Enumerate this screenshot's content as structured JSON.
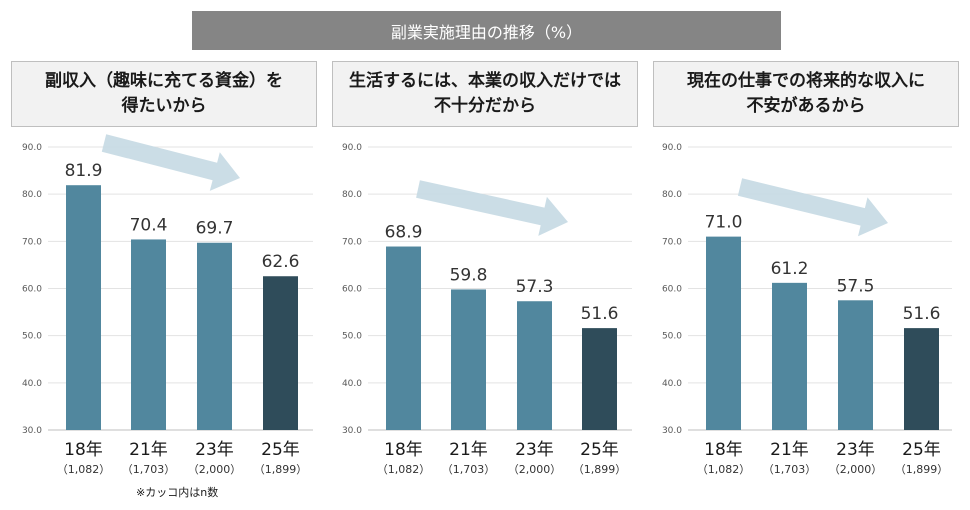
{
  "title": "副業実施理由の推移（%）",
  "footnote": "※カッコ内はn数",
  "colors": {
    "bar": "#51879e",
    "bar_last": "#2f4c5a",
    "arrow": "#c5d9e3",
    "title_bg": "#858585"
  },
  "chart_data": [
    {
      "type": "bar",
      "title_lines": [
        "副収入（趣味に充てる資金）を",
        "得たいから"
      ],
      "categories": [
        "18年",
        "21年",
        "23年",
        "25年"
      ],
      "n_labels": [
        "（1,082）",
        "（1,703）",
        "（2,000）",
        "（1,899）"
      ],
      "values": [
        81.9,
        70.4,
        69.7,
        62.6
      ],
      "value_labels": [
        "81.9",
        "70.4",
        "69.7",
        "62.6"
      ],
      "yticks": [
        "90.0",
        "80.0",
        "70.0",
        "60.0",
        "50.0",
        "40.0",
        "30.0"
      ],
      "ylim": [
        30,
        90
      ]
    },
    {
      "type": "bar",
      "title_lines": [
        "生活するには、本業の収入だけでは",
        "不十分だから"
      ],
      "categories": [
        "18年",
        "21年",
        "23年",
        "25年"
      ],
      "n_labels": [
        "（1,082）",
        "（1,703）",
        "（2,000）",
        "（1,899）"
      ],
      "values": [
        68.9,
        59.8,
        57.3,
        51.6
      ],
      "value_labels": [
        "68.9",
        "59.8",
        "57.3",
        "51.6"
      ],
      "yticks": [
        "90.0",
        "80.0",
        "70.0",
        "60.0",
        "50.0",
        "40.0",
        "30.0"
      ],
      "ylim": [
        30,
        90
      ]
    },
    {
      "type": "bar",
      "title_lines": [
        "現在の仕事での将来的な収入に",
        "不安があるから"
      ],
      "categories": [
        "18年",
        "21年",
        "23年",
        "25年"
      ],
      "n_labels": [
        "（1,082）",
        "（1,703）",
        "（2,000）",
        "（1,899）"
      ],
      "values": [
        71.0,
        61.2,
        57.5,
        51.6
      ],
      "value_labels": [
        "71.0",
        "61.2",
        "57.5",
        "51.6"
      ],
      "yticks": [
        "90.0",
        "80.0",
        "70.0",
        "60.0",
        "50.0",
        "40.0",
        "30.0"
      ],
      "ylim": [
        30,
        90
      ]
    }
  ]
}
